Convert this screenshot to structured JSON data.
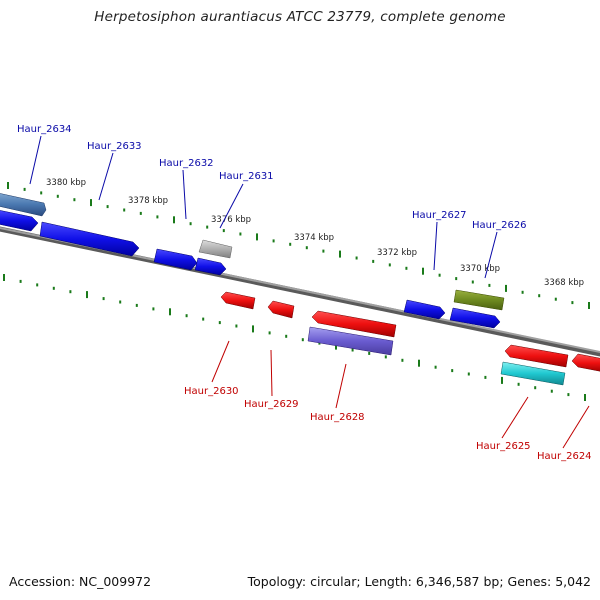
{
  "title": "Herpetosiphon aurantiacus ATCC 23779, complete genome",
  "footer": {
    "accession": "Accession: NC_009972",
    "summary": "Topology: circular; Length: 6,346,587 bp; Genes: 5,042"
  },
  "scale_labels": [
    "3380 kbp",
    "3378 kbp",
    "3376 kbp",
    "3374 kbp",
    "3372 kbp",
    "3370 kbp",
    "3368 kbp"
  ],
  "gene_labels": [
    {
      "name": "Haur_2634",
      "strand": "forward"
    },
    {
      "name": "Haur_2633",
      "strand": "forward"
    },
    {
      "name": "Haur_2632",
      "strand": "forward"
    },
    {
      "name": "Haur_2631",
      "strand": "forward"
    },
    {
      "name": "Haur_2627",
      "strand": "forward"
    },
    {
      "name": "Haur_2626",
      "strand": "forward"
    },
    {
      "name": "Haur_2630",
      "strand": "reverse"
    },
    {
      "name": "Haur_2629",
      "strand": "reverse"
    },
    {
      "name": "Haur_2628",
      "strand": "reverse"
    },
    {
      "name": "Haur_2625",
      "strand": "reverse"
    },
    {
      "name": "Haur_2624",
      "strand": "reverse"
    }
  ],
  "colors": {
    "forward_label": "#0a0aa8",
    "reverse_label": "#c00000",
    "backbone": "#8a8a8a",
    "tick": "#1a7a1a",
    "forward_gene": "#1010e0",
    "reverse_gene": "#e01010"
  }
}
